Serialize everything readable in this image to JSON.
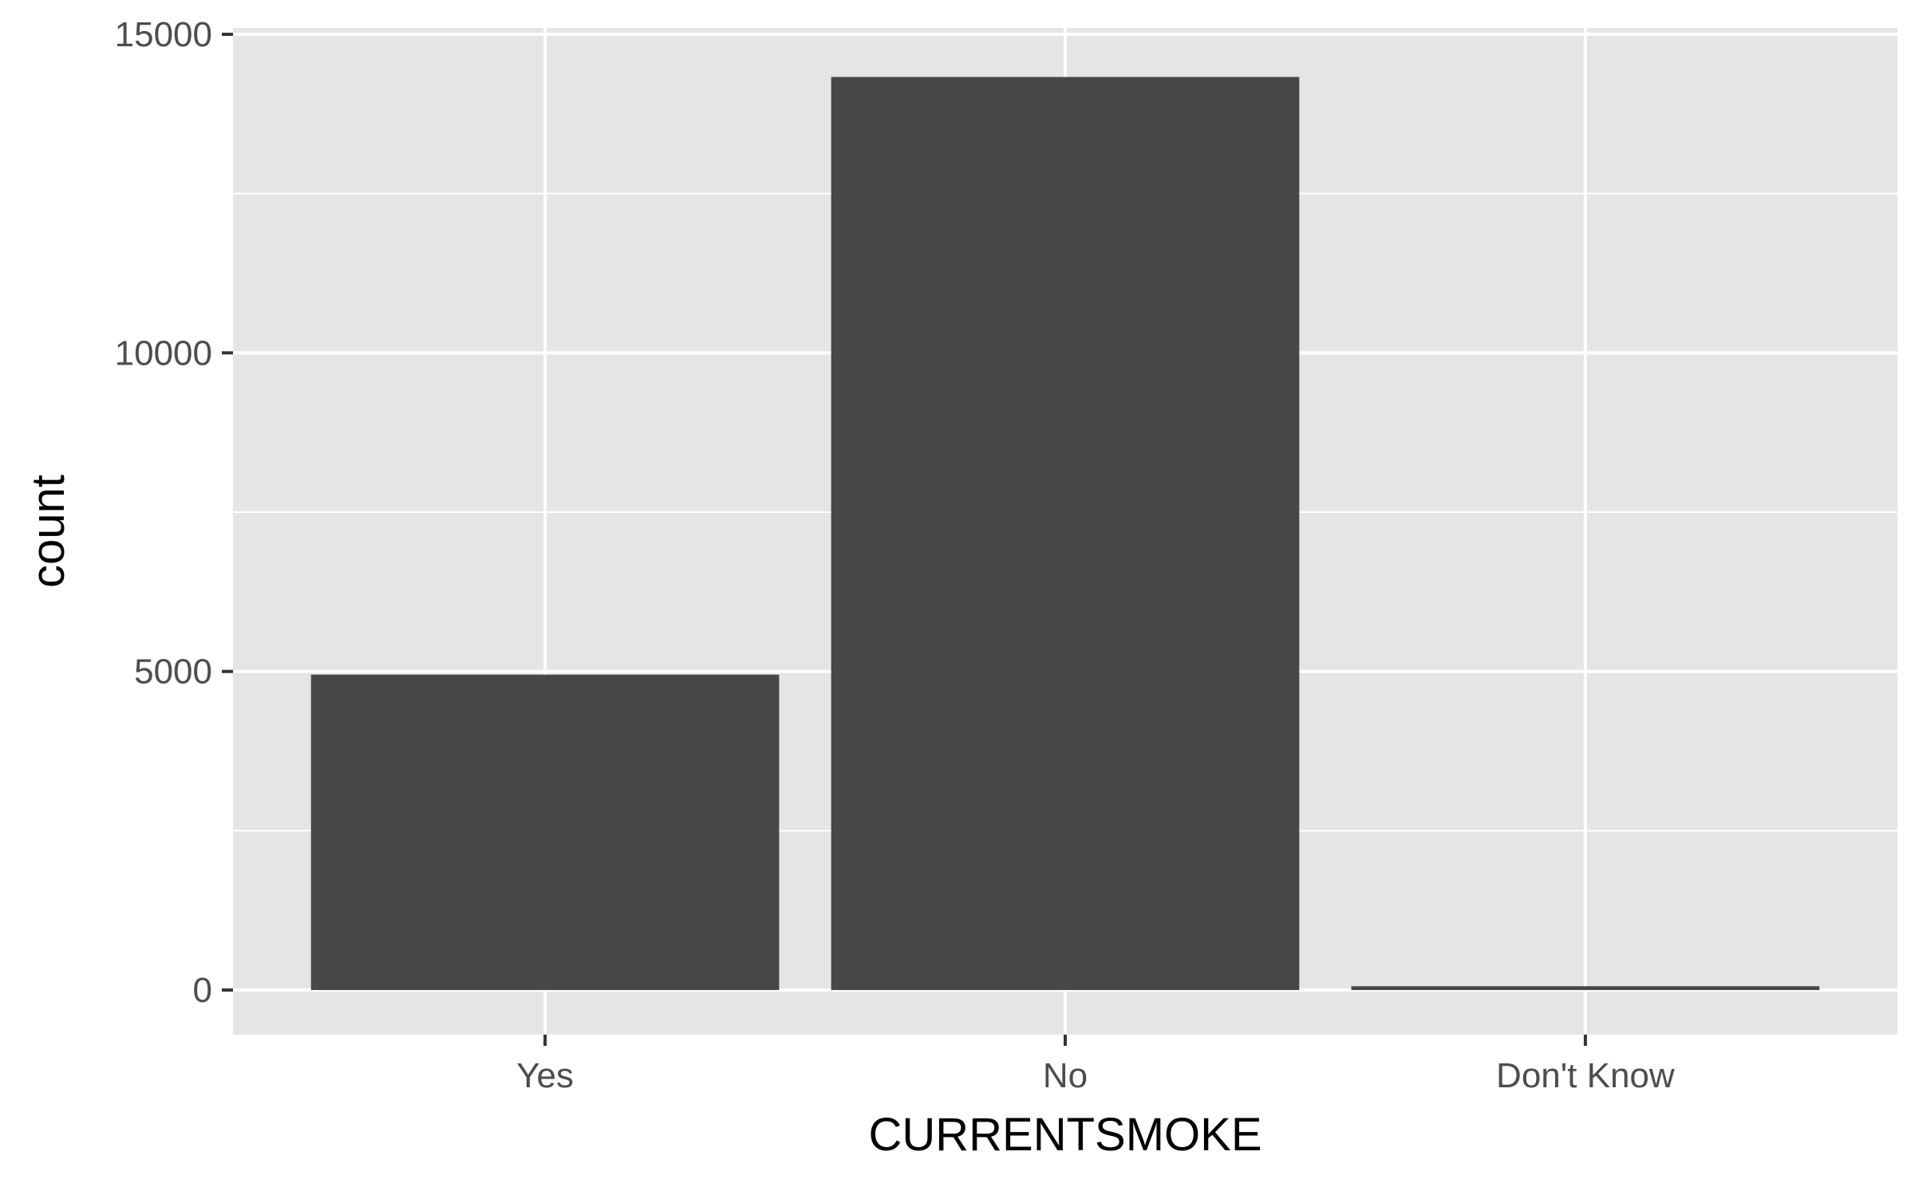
{
  "chart_data": {
    "type": "bar",
    "categories": [
      "Yes",
      "No",
      "Don't Know"
    ],
    "values": [
      4950,
      14330,
      60
    ],
    "xlabel": "CURRENTSMOKE",
    "ylabel": "count",
    "ylim": [
      -700,
      15100
    ],
    "yticks": [
      0,
      5000,
      10000,
      15000
    ],
    "ytick_labels": [
      "0",
      "5000",
      "10000",
      "15000"
    ],
    "y_minor_ticks": [
      2500,
      7500,
      12500
    ],
    "grid": true,
    "legend": "none",
    "colors": {
      "panel_background": "#e5e5e5",
      "grid": "#ffffff",
      "bar_fill": "#474747",
      "tick_text": "#4d4d4d",
      "axis_title": "#000000"
    }
  }
}
